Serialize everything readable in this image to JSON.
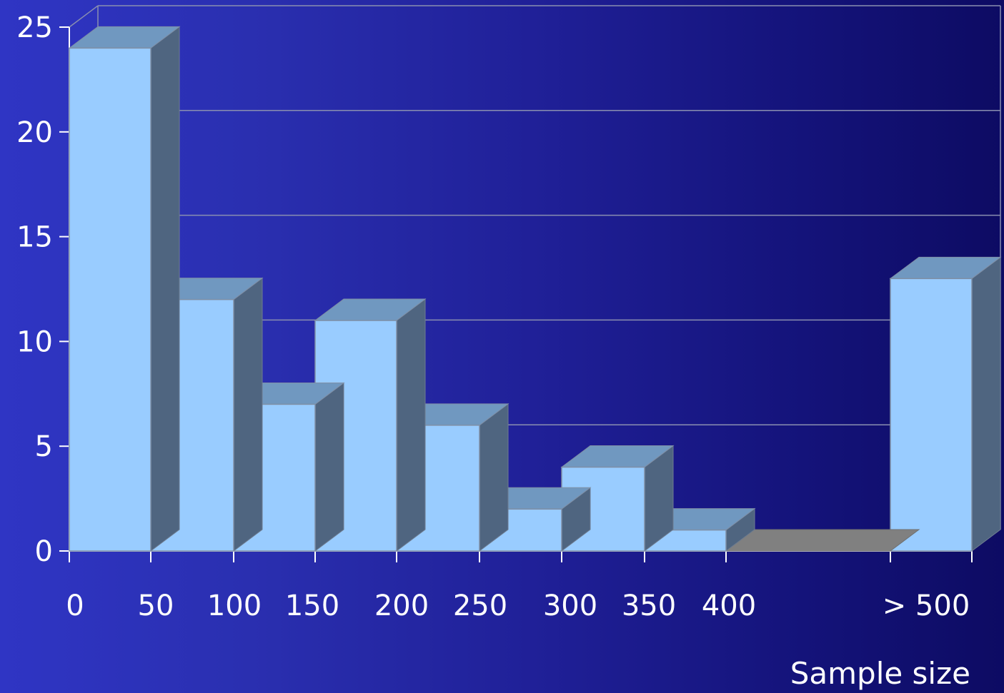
{
  "chart_data": {
    "type": "bar",
    "title": "",
    "xlabel": "Sample size",
    "ylabel": "",
    "ylim": [
      0,
      25
    ],
    "yticks": [
      "0",
      "5",
      "10",
      "15",
      "20",
      "25"
    ],
    "xticks": [
      "0",
      "50",
      "100",
      "150",
      "200",
      "250",
      "300",
      "350",
      "400",
      "> 500"
    ],
    "categories": [
      "0-50",
      "50-100",
      "100-150",
      "150-200",
      "200-250",
      "250-300",
      "300-350",
      "350-400",
      "400-500",
      "> 500"
    ],
    "values": [
      24,
      12,
      7,
      11,
      6,
      2,
      4,
      1,
      0,
      13
    ],
    "grid": true,
    "style": "3d",
    "colors": {
      "bar_front": "#99ccff",
      "bar_top": "#7098c0",
      "bar_side": "#4f6580",
      "floor": "#808080",
      "grid": "#8a8fb0",
      "text": "#ffffff"
    }
  }
}
